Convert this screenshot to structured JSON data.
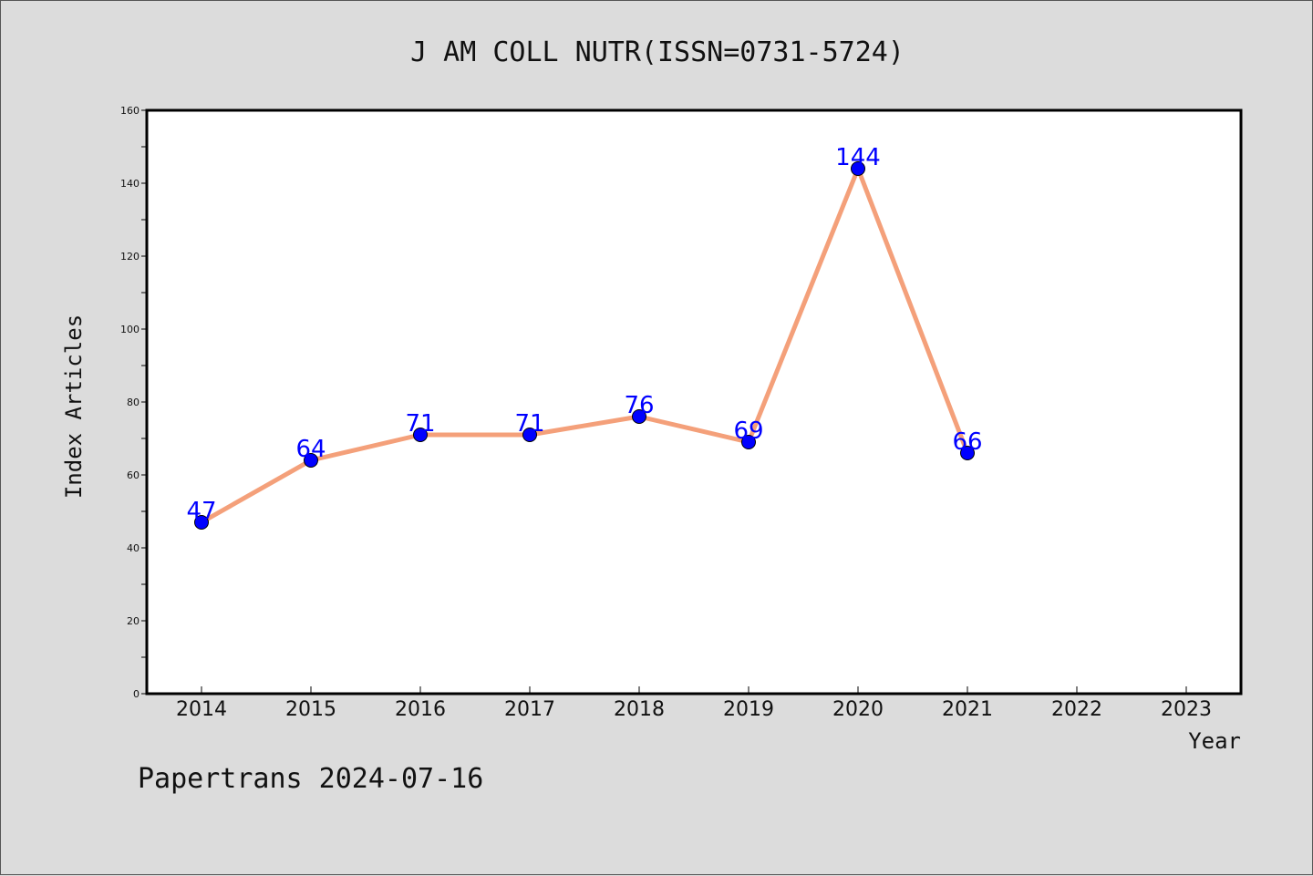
{
  "chart_data": {
    "type": "line",
    "title": "J AM COLL NUTR(ISSN=0731-5724)",
    "xlabel": "Year",
    "ylabel": "Index Articles",
    "categories": [
      "2014",
      "2015",
      "2016",
      "2017",
      "2018",
      "2019",
      "2020",
      "2021",
      "2022",
      "2023"
    ],
    "series": [
      {
        "values": [
          47,
          64,
          71,
          71,
          76,
          69,
          144,
          66,
          null,
          null
        ],
        "line_color": "#f4a07a",
        "marker_color": "#0000ff"
      }
    ],
    "ylim": [
      0,
      160
    ],
    "yticks": [
      0,
      20,
      40,
      60,
      80,
      100,
      120,
      140,
      160
    ],
    "grid": false,
    "data_label_color": "#0000ff"
  },
  "footer": "Papertrans 2024-07-16"
}
